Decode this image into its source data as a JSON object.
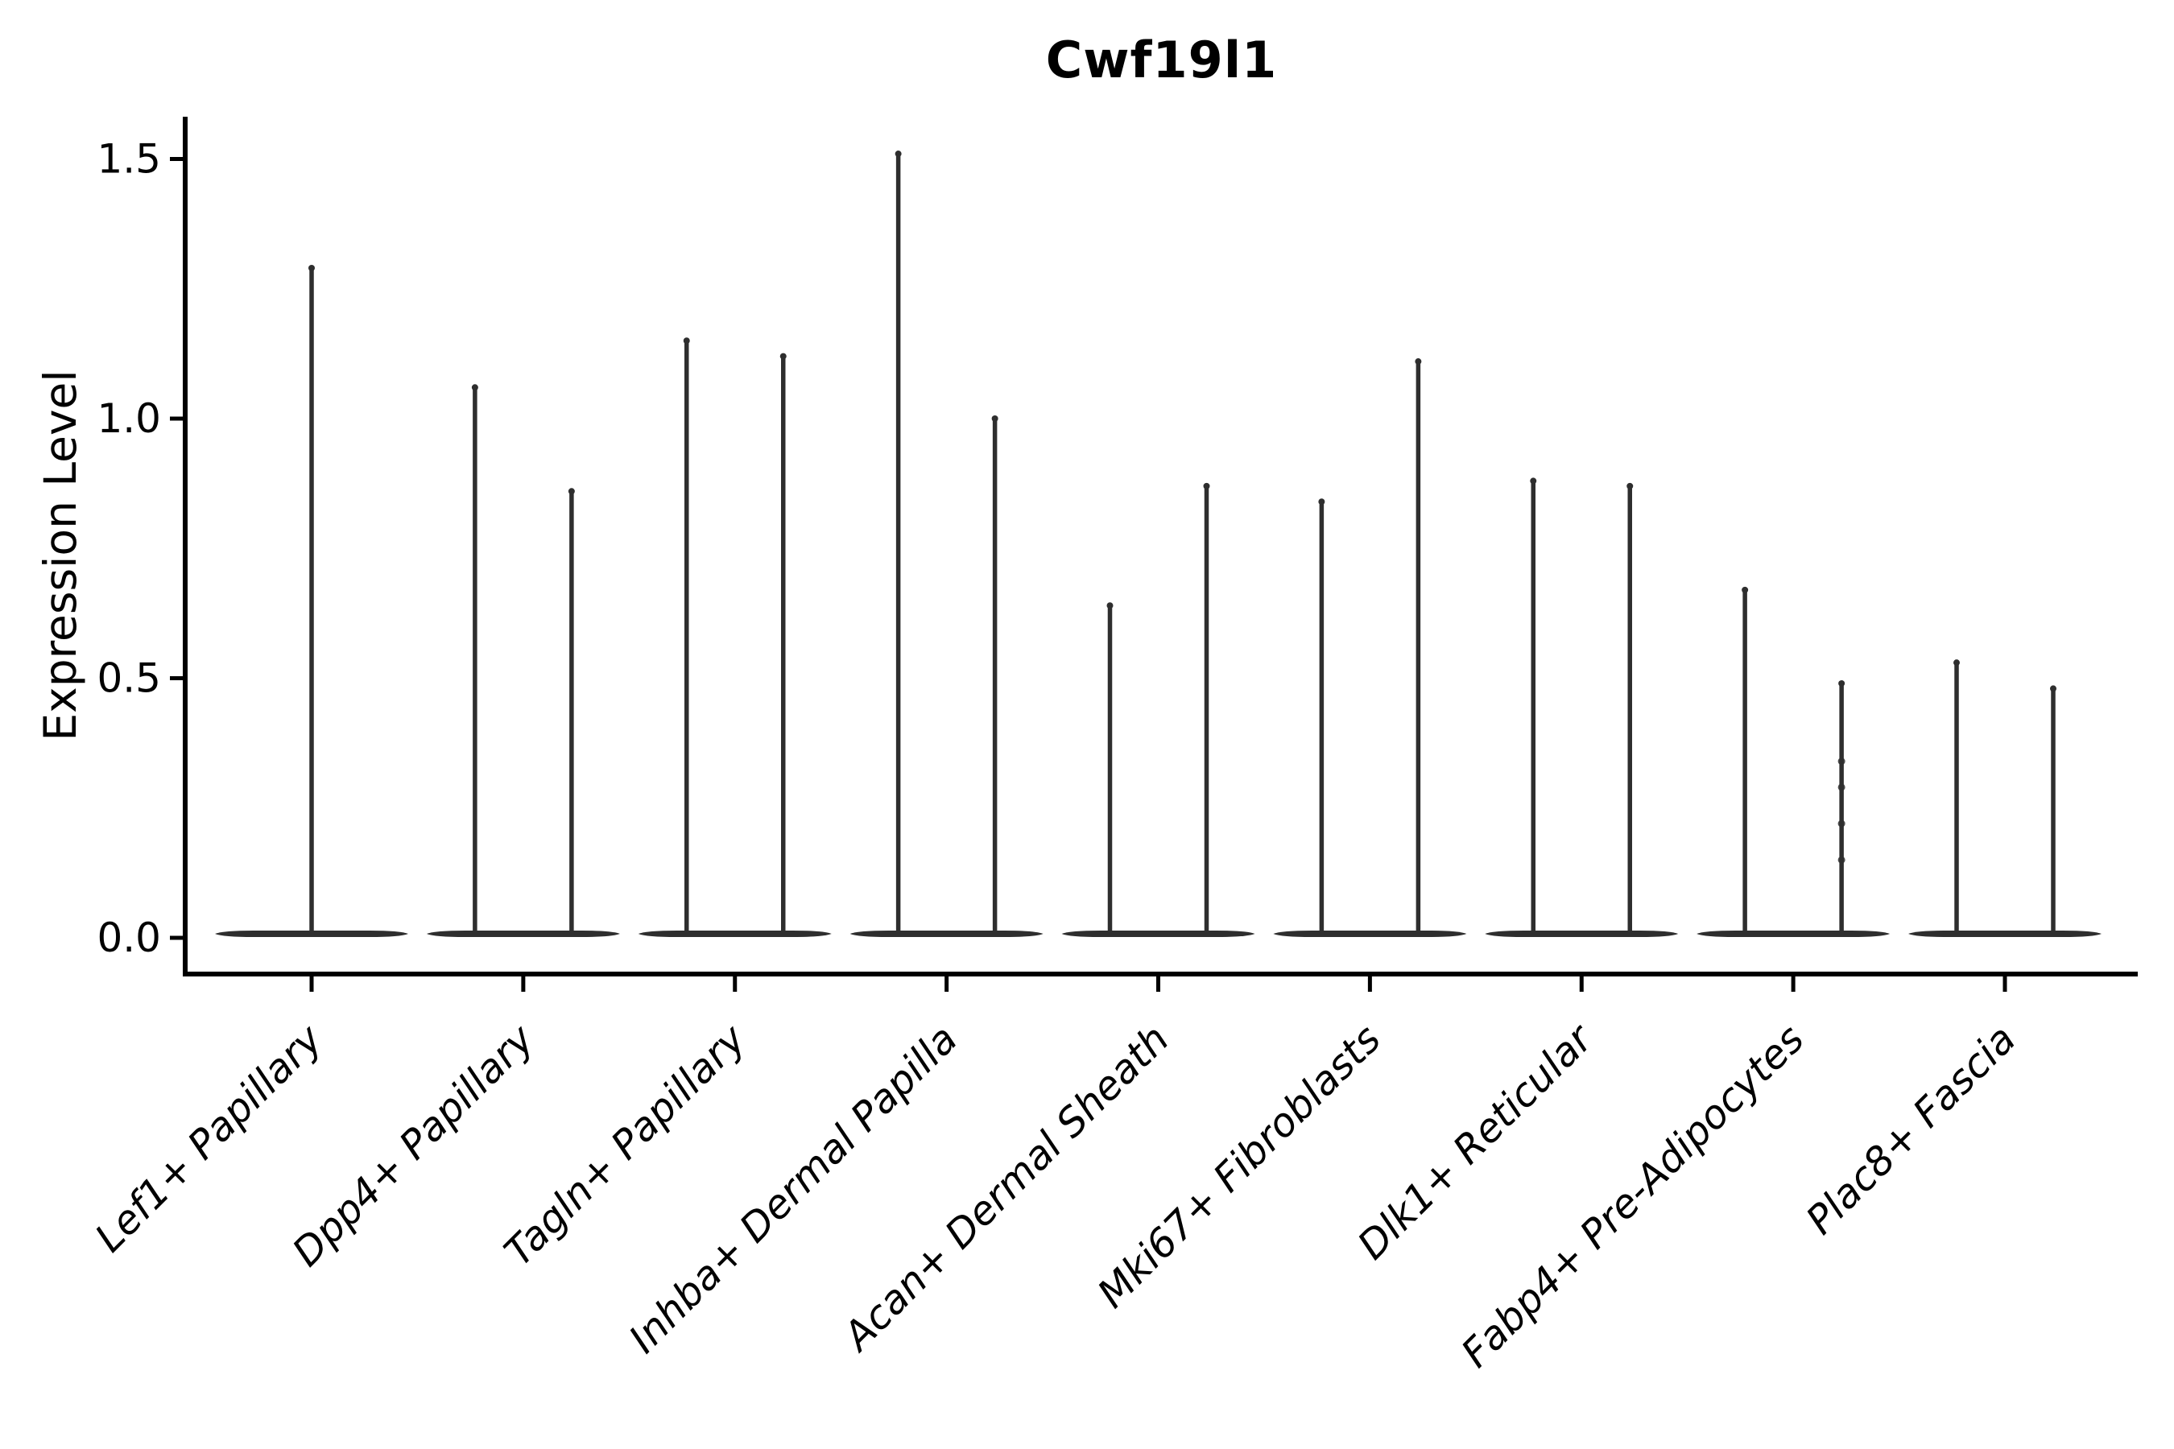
{
  "title": "Cwf19l1",
  "ylabel": "Expression Level",
  "colors": {
    "violin": "#2e2e2e",
    "axis": "#000000",
    "text": "#000000",
    "background": "#ffffff"
  },
  "chart_data": {
    "type": "violin",
    "title": "Cwf19l1",
    "xlabel": "",
    "ylabel": "Expression Level",
    "ylim": [
      -0.07,
      1.58
    ],
    "yticks": [
      "0.0",
      "0.5",
      "1.0",
      "1.5"
    ],
    "grid": false,
    "legend": null,
    "baseline_value": 0.0,
    "categories": [
      "Lef1+ Papillary",
      "Dpp4+ Papillary",
      "Tagln+ Papillary",
      "Inhba+ Dermal Papilla",
      "Acan+ Dermal Sheath",
      "Mki67+ Fibroblasts",
      "Dlk1+ Reticular",
      "Fabp4+ Pre-Adipocytes",
      "Plac8+ Fascia"
    ],
    "series": [
      {
        "category": "Lef1+ Papillary",
        "violin_maxima": [
          1.29
        ]
      },
      {
        "category": "Dpp4+ Papillary",
        "violin_maxima": [
          1.06,
          0.86
        ]
      },
      {
        "category": "Tagln+ Papillary",
        "violin_maxima": [
          1.15,
          1.12
        ]
      },
      {
        "category": "Inhba+ Dermal Papilla",
        "violin_maxima": [
          1.51,
          1.0
        ]
      },
      {
        "category": "Acan+ Dermal Sheath",
        "violin_maxima": [
          0.64,
          0.87
        ]
      },
      {
        "category": "Mki67+ Fibroblasts",
        "violin_maxima": [
          0.84,
          1.11
        ]
      },
      {
        "category": "Dlk1+ Reticular",
        "violin_maxima": [
          0.88,
          0.87
        ]
      },
      {
        "category": "Fabp4+ Pre-Adipocytes",
        "violin_maxima": [
          0.67,
          0.49
        ],
        "dots": [
          0.34,
          0.29,
          0.22,
          0.15
        ]
      },
      {
        "category": "Plac8+ Fascia",
        "violin_maxima": [
          0.53,
          0.48
        ]
      }
    ]
  }
}
